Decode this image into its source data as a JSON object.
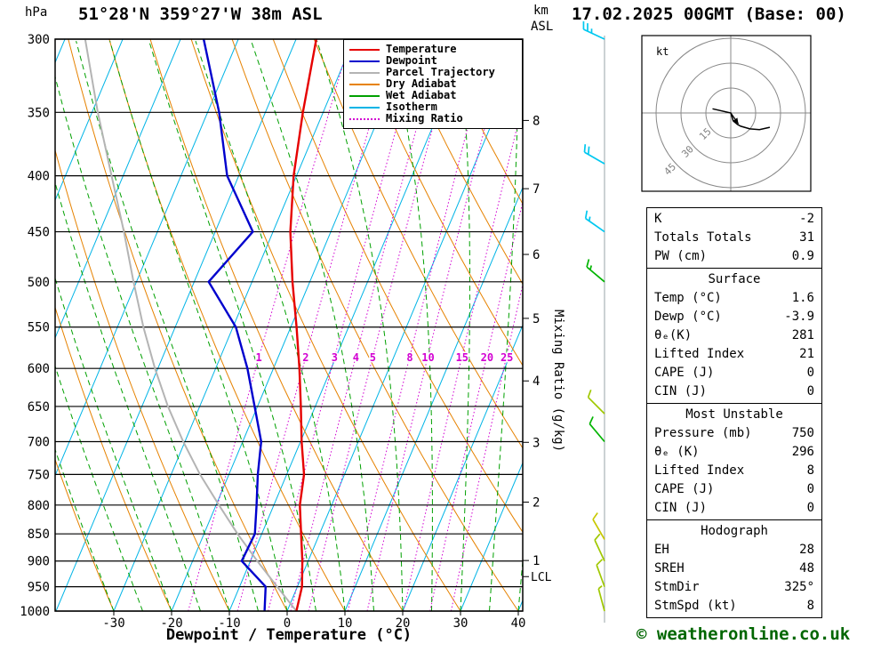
{
  "header": {
    "title": "51°28'N 359°27'W 38m ASL",
    "datetime": "17.02.2025 00GMT (Base: 00)",
    "pressure_unit": "hPa",
    "km_label": "km",
    "asl_label": "ASL"
  },
  "axes": {
    "right_label": "Mixing Ratio (g/kg)"
  },
  "legend": {
    "items": [
      {
        "label": "Temperature",
        "color": "#e60000",
        "line": "solid"
      },
      {
        "label": "Dewpoint",
        "color": "#0000cd",
        "line": "solid"
      },
      {
        "label": "Parcel Trajectory",
        "color": "#b4b4b4",
        "line": "solid"
      },
      {
        "label": "Dry Adiabat",
        "color": "#e68200",
        "line": "solid"
      },
      {
        "label": "Wet Adiabat",
        "color": "#00a000",
        "line": "solid"
      },
      {
        "label": "Isotherm",
        "color": "#00b4e6",
        "line": "solid"
      },
      {
        "label": "Mixing Ratio",
        "color": "#d200d2",
        "line": "dotted"
      }
    ]
  },
  "chart_data": {
    "type": "line",
    "title": "Skew-T log-P sounding",
    "x_axis": {
      "label": "Dewpoint / Temperature (°C)",
      "ticks_c": [
        -30,
        -20,
        -10,
        0,
        10,
        20,
        30,
        40
      ],
      "range_c": [
        -40,
        40
      ]
    },
    "y_axis": {
      "label": "hPa",
      "scale": "log",
      "ticks_hpa": [
        300,
        350,
        400,
        450,
        500,
        550,
        600,
        650,
        700,
        750,
        800,
        850,
        900,
        950,
        1000
      ]
    },
    "km_axis": {
      "label": "km ASL",
      "ticks": [
        {
          "km": 8,
          "hpa": 356
        },
        {
          "km": 7,
          "hpa": 411
        },
        {
          "km": 6,
          "hpa": 472
        },
        {
          "km": 5,
          "hpa": 540
        },
        {
          "km": 4,
          "hpa": 616
        },
        {
          "km": 3,
          "hpa": 701
        },
        {
          "km": 2,
          "hpa": 795
        },
        {
          "km": 1,
          "hpa": 899
        }
      ],
      "lcl": {
        "label": "LCL",
        "hpa": 930
      }
    },
    "mixing_ratio_lines_gkg": [
      1,
      2,
      3,
      4,
      5,
      8,
      10,
      15,
      20,
      25
    ],
    "isotherms_c": {
      "min": -90,
      "max": 40,
      "step": 10
    },
    "dry_adiabats_c": {
      "min": -40,
      "max": 110,
      "step": 10
    },
    "wet_adiabats_c": {
      "min": -30,
      "max": 40,
      "step": 5
    },
    "line_colors": {
      "isotherm": "#00b4e6",
      "dry_adiabat": "#e68200",
      "wet_adiabat": "#00a000",
      "mixing_ratio": "#d200d2",
      "grid": "#000000"
    },
    "pressure_hpa": [
      1000,
      950,
      900,
      850,
      800,
      750,
      700,
      650,
      600,
      550,
      500,
      450,
      400,
      350,
      300
    ],
    "series": [
      {
        "name": "Temperature",
        "color": "#e60000",
        "values_c": [
          1.6,
          0.8,
          -1.0,
          -3.2,
          -5.5,
          -7.0,
          -9.8,
          -12.5,
          -15.5,
          -19.0,
          -23.0,
          -27.0,
          -30.5,
          -33.5,
          -36.5
        ]
      },
      {
        "name": "Dewpoint",
        "color": "#0000cd",
        "values_c": [
          -3.9,
          -5.5,
          -11.5,
          -11.2,
          -13.0,
          -15.0,
          -16.8,
          -20.5,
          -24.5,
          -29.5,
          -37.5,
          -33.5,
          -42.0,
          -48.0,
          -56.0
        ]
      },
      {
        "name": "Parcel Trajectory",
        "color": "#b4b4b4",
        "values_c": [
          1.6,
          -3.5,
          -8.8,
          -14.2,
          -19.5,
          -25.0,
          -30.3,
          -35.5,
          -40.5,
          -45.5,
          -50.5,
          -55.8,
          -62.0,
          -69.0,
          -76.5
        ]
      }
    ]
  },
  "wind_barbs": [
    {
      "p": 300,
      "dir": 295,
      "spd": 25,
      "color": "#00c8f0"
    },
    {
      "p": 390,
      "dir": 300,
      "spd": 20,
      "color": "#00c8f0"
    },
    {
      "p": 450,
      "dir": 305,
      "spd": 15,
      "color": "#00c8f0"
    },
    {
      "p": 500,
      "dir": 310,
      "spd": 15,
      "color": "#00b400"
    },
    {
      "p": 660,
      "dir": 315,
      "spd": 10,
      "color": "#a0c800"
    },
    {
      "p": 700,
      "dir": 320,
      "spd": 10,
      "color": "#00b400"
    },
    {
      "p": 860,
      "dir": 330,
      "spd": 10,
      "color": "#c8c800"
    },
    {
      "p": 900,
      "dir": 335,
      "spd": 10,
      "color": "#a0c800"
    },
    {
      "p": 950,
      "dir": 340,
      "spd": 8,
      "color": "#a0c800"
    },
    {
      "p": 1000,
      "dir": 345,
      "spd": 5,
      "color": "#a0c800"
    }
  ],
  "hodograph": {
    "unit_label": "kt",
    "rings_kt": [
      15,
      30,
      45
    ],
    "trace_kt": [
      {
        "u": -11.0,
        "v": 2.5
      },
      {
        "u": 0.0,
        "v": 0.0
      },
      {
        "u": 1.5,
        "v": -4.8
      },
      {
        "u": 4.0,
        "v": -6.9
      },
      {
        "u": 6.0,
        "v": -8.0
      },
      {
        "u": 11.5,
        "v": -9.6
      },
      {
        "u": 17.3,
        "v": -10.0
      },
      {
        "u": 23.5,
        "v": -8.6
      }
    ],
    "storm_motion": {
      "dir_deg": 325,
      "speed_kt": 8
    }
  },
  "table": {
    "sections": [
      {
        "header": null,
        "rows": [
          [
            "K",
            "-2"
          ],
          [
            "Totals Totals",
            "31"
          ],
          [
            "PW (cm)",
            "0.9"
          ]
        ]
      },
      {
        "header": "Surface",
        "rows": [
          [
            "Temp (°C)",
            "1.6"
          ],
          [
            "Dewp (°C)",
            "-3.9"
          ],
          [
            "θₑ(K)",
            "281"
          ],
          [
            "Lifted Index",
            "21"
          ],
          [
            "CAPE (J)",
            "0"
          ],
          [
            "CIN (J)",
            "0"
          ]
        ]
      },
      {
        "header": "Most Unstable",
        "rows": [
          [
            "Pressure (mb)",
            "750"
          ],
          [
            "θₑ (K)",
            "296"
          ],
          [
            "Lifted Index",
            "8"
          ],
          [
            "CAPE (J)",
            "0"
          ],
          [
            "CIN (J)",
            "0"
          ]
        ]
      },
      {
        "header": "Hodograph",
        "rows": [
          [
            "EH",
            "28"
          ],
          [
            "SREH",
            "48"
          ],
          [
            "StmDir",
            "325°"
          ],
          [
            "StmSpd (kt)",
            "8"
          ]
        ]
      }
    ]
  },
  "footer": {
    "copyright": "© weatheronline.co.uk"
  }
}
